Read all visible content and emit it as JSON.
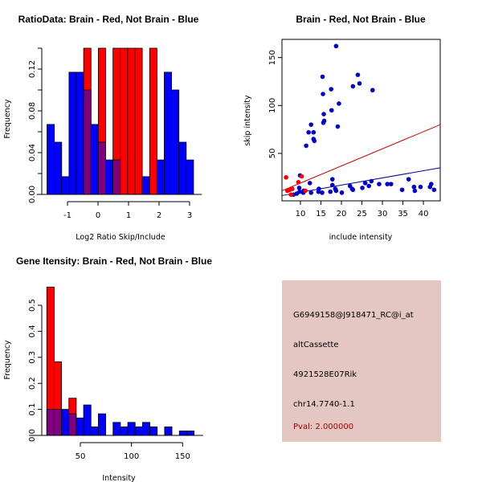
{
  "chart_data": [
    {
      "type": "bar",
      "id": "ratio-histogram",
      "title": "RatioData: Brain - Red, Not Brain - Blue",
      "xlabel": "Log2 Ratio Skip/Include",
      "ylabel": "Frequency",
      "xlim": [
        -1.9,
        3.4
      ],
      "ylim": [
        0,
        0.14
      ],
      "xticks": [
        -1,
        0,
        1,
        2,
        3
      ],
      "xtick_labels": [
        "-1",
        "0",
        "1",
        "2",
        "3"
      ],
      "yticks": [
        0,
        0.02,
        0.04,
        0.06,
        0.08,
        0.1,
        0.12,
        0.14
      ],
      "ytick_labels": [
        "0.00",
        "",
        "0.04",
        "",
        "0.08",
        "",
        "0.12",
        ""
      ],
      "bin_start": -1.67,
      "bin_width": 0.24,
      "series": [
        {
          "name": "Brain",
          "color": "#ff0000",
          "values": [
            0,
            0,
            0,
            0,
            0,
            0.14,
            0,
            0.14,
            0,
            0.14,
            0.14,
            0.14,
            0.14,
            0,
            0.14,
            0,
            0,
            0,
            0,
            0
          ]
        },
        {
          "name": "Not Brain",
          "color": "#0000ff",
          "values": [
            0.067,
            0.05,
            0.017,
            0.117,
            0.117,
            0.1,
            0.067,
            0.05,
            0.033,
            0.033,
            0,
            0,
            0,
            0.017,
            0,
            0.033,
            0.117,
            0.1,
            0.05,
            0.033
          ]
        }
      ],
      "overlap_color": "#800080",
      "grid": false
    },
    {
      "type": "scatter",
      "id": "intensity-scatter",
      "title": "Brain - Red, Not Brain - Blue",
      "xlabel": "include intensity",
      "ylabel": "skip intensity",
      "xlim": [
        5.5,
        44.1
      ],
      "ylim": [
        0.5,
        169
      ],
      "xticks": [
        10,
        15,
        20,
        25,
        30,
        35,
        40
      ],
      "yticks": [
        50,
        100,
        150
      ],
      "series": [
        {
          "name": "Brain",
          "color": "#ff0000",
          "points": [
            [
              6.5,
              25
            ],
            [
              10.3,
              26
            ],
            [
              9.5,
              20
            ],
            [
              6.8,
              11
            ],
            [
              7.4,
              12
            ],
            [
              11.2,
              11
            ],
            [
              7.7,
              7
            ],
            [
              8.0,
              13
            ]
          ]
        },
        {
          "name": "Not Brain",
          "color": "#0000cc",
          "points": [
            [
              18.7,
              162
            ],
            [
              15.4,
              130
            ],
            [
              24.0,
              132
            ],
            [
              24.4,
              123
            ],
            [
              22.8,
              120
            ],
            [
              17.5,
              117
            ],
            [
              27.6,
              116
            ],
            [
              15.5,
              112
            ],
            [
              19.4,
              102
            ],
            [
              17.6,
              95
            ],
            [
              15.7,
              91
            ],
            [
              15.8,
              84
            ],
            [
              15.6,
              82
            ],
            [
              12.6,
              80
            ],
            [
              19.1,
              78
            ],
            [
              12.0,
              72
            ],
            [
              13.2,
              72
            ],
            [
              13.2,
              65
            ],
            [
              13.4,
              63
            ],
            [
              11.4,
              58
            ],
            [
              9.9,
              27
            ],
            [
              12.3,
              19
            ],
            [
              17.8,
              23
            ],
            [
              17.8,
              17
            ],
            [
              22.1,
              16
            ],
            [
              25.8,
              19
            ],
            [
              27.3,
              21
            ],
            [
              26.7,
              16
            ],
            [
              29.2,
              18
            ],
            [
              31.2,
              18
            ],
            [
              32.1,
              18
            ],
            [
              36.4,
              23
            ],
            [
              34.8,
              12
            ],
            [
              37.7,
              15
            ],
            [
              37.9,
              11
            ],
            [
              39.3,
              15
            ],
            [
              41.9,
              18
            ],
            [
              41.6,
              15
            ],
            [
              42.6,
              12
            ],
            [
              22.6,
              13
            ],
            [
              22.8,
              12
            ],
            [
              25.1,
              14
            ],
            [
              20.1,
              9
            ],
            [
              18.7,
              11
            ],
            [
              18.5,
              13
            ],
            [
              17.3,
              10
            ],
            [
              15.3,
              9
            ],
            [
              14.5,
              13
            ],
            [
              14.4,
              10
            ],
            [
              12.6,
              9
            ],
            [
              10.8,
              11
            ],
            [
              10.7,
              9
            ],
            [
              9.8,
              10
            ],
            [
              9.7,
              14
            ],
            [
              9.1,
              8
            ],
            [
              8.3,
              7
            ]
          ]
        }
      ],
      "lines": [
        {
          "name": "Brain fit",
          "color": "#cc0000",
          "from": [
            5.5,
            11
          ],
          "to": [
            44.1,
            80
          ]
        },
        {
          "name": "Not Brain fit",
          "color": "#000099",
          "from": [
            5.5,
            6
          ],
          "to": [
            44.1,
            35
          ]
        }
      ],
      "grid": false
    },
    {
      "type": "bar",
      "id": "gene-intensity-histogram",
      "title": "Gene Itensity: Brain - Red, Not Brain - Blue",
      "xlabel": "Intensity",
      "ylabel": "Frequency",
      "xlim": [
        3,
        170
      ],
      "ylim": [
        0,
        0.57
      ],
      "xticks": [
        50,
        100,
        150
      ],
      "yticks": [
        0,
        0.1,
        0.2,
        0.3,
        0.4,
        0.5
      ],
      "ytick_labels": [
        "0.0",
        "0.1",
        "0.2",
        "0.3",
        "0.4",
        "0.5"
      ],
      "bin_start": 17.2,
      "bin_width": 7.2,
      "series": [
        {
          "name": "Brain",
          "color": "#ff0000",
          "values": [
            0.57,
            0.283,
            0,
            0.143,
            0,
            0,
            0,
            0,
            0,
            0,
            0,
            0,
            0,
            0,
            0,
            0,
            0,
            0,
            0,
            0
          ]
        },
        {
          "name": "Not Brain",
          "color": "#0000ff",
          "values": [
            0.1,
            0.1,
            0.1,
            0.083,
            0.067,
            0.117,
            0.033,
            0.083,
            0,
            0.05,
            0.033,
            0.05,
            0.033,
            0.05,
            0.033,
            0,
            0.033,
            0,
            0.017,
            0.017
          ]
        }
      ],
      "overlap_color": "#800080",
      "grid": false
    }
  ],
  "info_panel": {
    "probe_id": "G6949158@J918471_RC@i_at",
    "event_type": "altCassette",
    "gene_name": "4921528E07Rik",
    "location": "chr14.7740-1.1",
    "pval": "Pval: 2.000000",
    "background_color": "#e4c7c1",
    "pval_color": "#a00000"
  }
}
